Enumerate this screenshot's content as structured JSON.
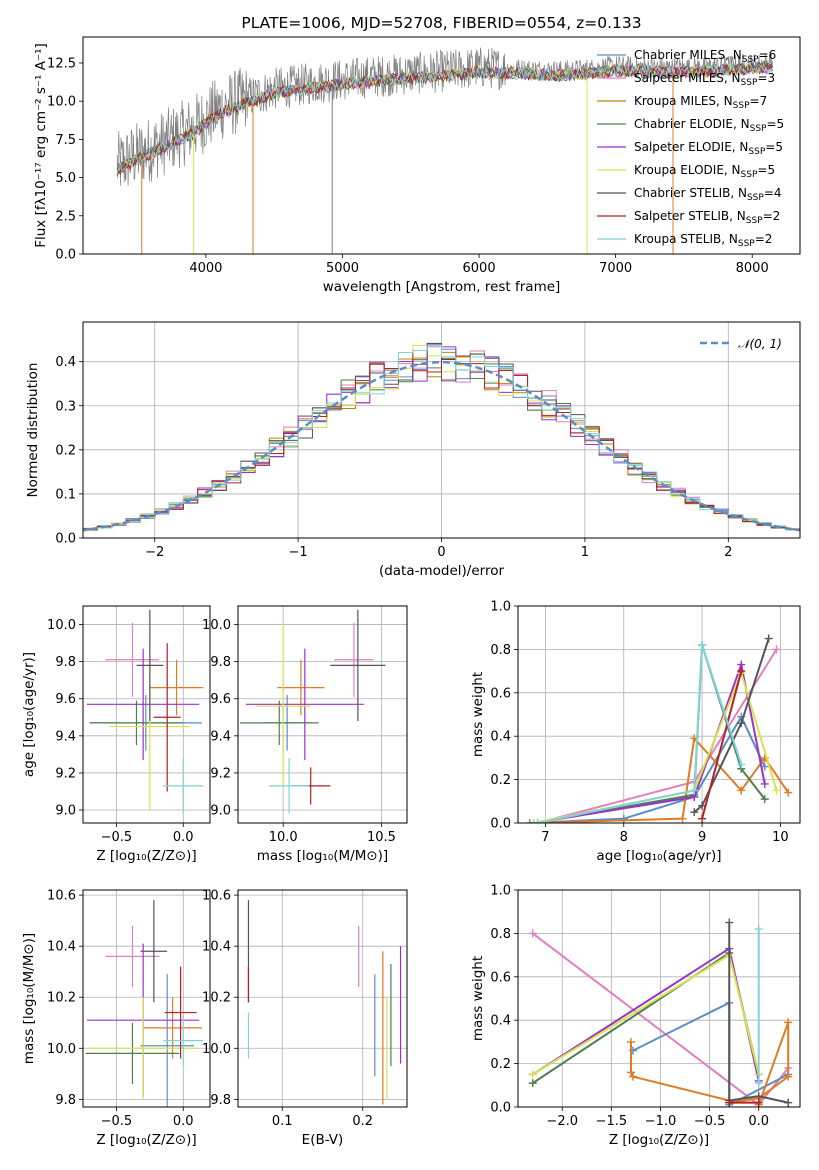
{
  "chart_data": [
    {
      "id": "spectrum",
      "type": "line",
      "title": "PLATE=1006, MJD=52708, FIBERID=0554, z=0.133",
      "xlabel": "wavelength [Angstrom, rest frame]",
      "ylabel": "Flux [fλ10⁻¹⁷ erg cm⁻² s⁻¹ A⁻¹]",
      "xlim": [
        3100,
        8350
      ],
      "ylim": [
        0,
        14.2
      ],
      "xticks": [
        "4000",
        "5000",
        "6000",
        "7000",
        "8000"
      ],
      "yticks": [
        "0.0",
        "2.5",
        "5.0",
        "7.5",
        "10.0",
        "12.5"
      ],
      "grid": false,
      "legend_position": "right",
      "data_envelope": {
        "x": [
          3350,
          3500,
          3700,
          3900,
          4100,
          4300,
          4500,
          4800,
          5000,
          5200,
          5500,
          5800,
          6000,
          6300,
          6600,
          6800,
          7000,
          7300,
          7600,
          7900,
          8150
        ],
        "y": [
          5.8,
          6.5,
          7.3,
          8.2,
          9.5,
          10.2,
          10.8,
          11.2,
          11.4,
          11.6,
          11.8,
          12.0,
          12.2,
          12.1,
          12.0,
          12.1,
          12.3,
          12.2,
          12.2,
          12.4,
          12.5
        ]
      },
      "series": [
        {
          "name": "Chabrier MILES, N",
          "sub": "SSP",
          "tail": "=6",
          "color": "#5a8dc8"
        },
        {
          "name": "Salpeter MILES, N",
          "sub": "SSP",
          "tail": "=3",
          "color": "#e17fc0"
        },
        {
          "name": "Kroupa MILES, N",
          "sub": "SSP",
          "tail": "=7",
          "color": "#b8860b"
        },
        {
          "name": "Chabrier ELODIE, N",
          "sub": "SSP",
          "tail": "=5",
          "color": "#4f7f4f"
        },
        {
          "name": "Salpeter ELODIE, N",
          "sub": "SSP",
          "tail": "=5",
          "color": "#9932cc"
        },
        {
          "name": "Kroupa ELODIE, N",
          "sub": "SSP",
          "tail": "=5",
          "color": "#d8e34a"
        },
        {
          "name": "Chabrier STELIB, N",
          "sub": "SSP",
          "tail": "=4",
          "color": "#555555"
        },
        {
          "name": "Salpeter STELIB, N",
          "sub": "SSP",
          "tail": "=2",
          "color": "#b22222"
        },
        {
          "name": "Kroupa STELIB, N",
          "sub": "SSP",
          "tail": "=2",
          "color": "#7fd4d8"
        }
      ]
    },
    {
      "id": "residuals",
      "type": "line",
      "xlabel": "(data-model)/error",
      "ylabel": "Normed distribution",
      "xlim": [
        -2.5,
        2.5
      ],
      "ylim": [
        0,
        0.49
      ],
      "xticks": [
        "−2",
        "−1",
        "0",
        "1",
        "2"
      ],
      "yticks": [
        "0.0",
        "0.1",
        "0.2",
        "0.3",
        "0.4"
      ],
      "grid": true,
      "legend_position": "top-right",
      "legend": "𝒩(0, 1)",
      "gaussian": {
        "mean": 0,
        "sigma": 1,
        "color": "#5a8dc8"
      }
    },
    {
      "id": "age_vs_Z",
      "type": "scatter",
      "xlabel": "Z [log₁₀(Z/Z⊙)]",
      "ylabel": "age  [log₁₀(age/yr)]",
      "xlim": [
        -0.75,
        0.2
      ],
      "ylim": [
        8.93,
        10.1
      ],
      "xticks": [
        "−0.5",
        "0.0"
      ],
      "yticks": [
        "9.0",
        "9.2",
        "9.4",
        "9.6",
        "9.8",
        "10.0"
      ],
      "grid": true,
      "points": [
        {
          "x": -0.28,
          "y": 9.47,
          "xerr": 0.42,
          "yerr": 0.15,
          "color": "#5a8dc8"
        },
        {
          "x": -0.38,
          "y": 9.81,
          "xerr": 0.2,
          "yerr": 0.2,
          "color": "#e17fc0"
        },
        {
          "x": -0.05,
          "y": 9.66,
          "xerr": 0.2,
          "yerr": 0.15,
          "color": "#e07b26"
        },
        {
          "x": -0.35,
          "y": 9.47,
          "xerr": 0.35,
          "yerr": 0.12,
          "color": "#4f7f4f"
        },
        {
          "x": -0.3,
          "y": 9.57,
          "xerr": 0.42,
          "yerr": 0.3,
          "color": "#9932cc"
        },
        {
          "x": -0.25,
          "y": 9.45,
          "xerr": 0.3,
          "yerr": 0.45,
          "color": "#d8e34a"
        },
        {
          "x": -0.25,
          "y": 9.78,
          "xerr": 0.1,
          "yerr": 0.3,
          "color": "#555555"
        },
        {
          "x": -0.12,
          "y": 9.5,
          "xerr": 0.1,
          "yerr": 0.4,
          "color": "#b22222"
        },
        {
          "x": 0.0,
          "y": 9.13,
          "xerr": 0.15,
          "yerr": 0.15,
          "color": "#7fd4d8"
        }
      ]
    },
    {
      "id": "age_vs_mass",
      "type": "scatter",
      "xlabel": "mass [log₁₀(M/M⊙)]",
      "ylabel": "",
      "xlim": [
        9.77,
        10.63
      ],
      "ylim": [
        8.93,
        10.1
      ],
      "xticks": [
        "10.0",
        "10.5"
      ],
      "yticks": [
        "9.0",
        "9.2",
        "9.4",
        "9.6",
        "9.8",
        "10.0"
      ],
      "grid": true,
      "points": [
        {
          "x": 10.02,
          "y": 9.47,
          "xerr": 0.12,
          "yerr": 0.15,
          "color": "#5a8dc8"
        },
        {
          "x": 10.36,
          "y": 9.81,
          "xerr": 0.1,
          "yerr": 0.2,
          "color": "#e17fc0"
        },
        {
          "x": 10.09,
          "y": 9.66,
          "xerr": 0.12,
          "yerr": 0.15,
          "color": "#e07b26"
        },
        {
          "x": 9.98,
          "y": 9.47,
          "xerr": 0.2,
          "yerr": 0.12,
          "color": "#4f7f4f"
        },
        {
          "x": 10.11,
          "y": 9.57,
          "xerr": 0.3,
          "yerr": 0.3,
          "color": "#9932cc"
        },
        {
          "x": 10.0,
          "y": 9.56,
          "xerr": 0.14,
          "yerr": 0.45,
          "color": "#d8e34a"
        },
        {
          "x": 10.38,
          "y": 9.78,
          "xerr": 0.14,
          "yerr": 0.3,
          "color": "#555555"
        },
        {
          "x": 10.14,
          "y": 9.13,
          "xerr": 0.1,
          "yerr": 0.1,
          "color": "#b22222"
        },
        {
          "x": 10.03,
          "y": 9.13,
          "xerr": 0.1,
          "yerr": 0.15,
          "color": "#7fd4d8"
        }
      ]
    },
    {
      "id": "weight_vs_age",
      "type": "line",
      "xlabel": "age  [log₁₀(age/yr)]",
      "ylabel": "mass weight",
      "xlim": [
        6.65,
        10.25
      ],
      "ylim": [
        0,
        1.0
      ],
      "xticks": [
        "7",
        "8",
        "9",
        "10"
      ],
      "yticks": [
        "0.0",
        "0.2",
        "0.4",
        "0.6",
        "0.8",
        "1.0"
      ],
      "grid": true,
      "series": [
        {
          "color": "#5a8dc8",
          "x": [
            6.8,
            8.0,
            8.9,
            9.5,
            9.8
          ],
          "y": [
            0.0,
            0.02,
            0.12,
            0.49,
            0.26
          ]
        },
        {
          "color": "#e17fc0",
          "x": [
            6.9,
            8.9,
            9.95
          ],
          "y": [
            0.0,
            0.19,
            0.8
          ]
        },
        {
          "color": "#e07b26",
          "x": [
            6.85,
            8.75,
            8.9,
            9.5,
            9.8,
            10.1
          ],
          "y": [
            0.0,
            0.02,
            0.39,
            0.15,
            0.3,
            0.14
          ]
        },
        {
          "color": "#4f7f4f",
          "x": [
            6.85,
            8.9,
            9.0,
            9.5,
            9.8
          ],
          "y": [
            0.0,
            0.13,
            0.82,
            0.25,
            0.11
          ]
        },
        {
          "color": "#9932cc",
          "x": [
            6.85,
            8.9,
            9.5,
            9.8
          ],
          "y": [
            0.0,
            0.12,
            0.73,
            0.18
          ]
        },
        {
          "color": "#d8e34a",
          "x": [
            6.85,
            8.9,
            9.5,
            9.95
          ],
          "y": [
            0.0,
            0.15,
            0.69,
            0.15
          ]
        },
        {
          "color": "#555555",
          "x": [
            8.9,
            9.0,
            9.5,
            9.85
          ],
          "y": [
            0.05,
            0.08,
            0.46,
            0.85
          ]
        },
        {
          "color": "#b22222",
          "x": [
            9.0,
            9.5
          ],
          "y": [
            0.02,
            0.7
          ]
        },
        {
          "color": "#7fd4d8",
          "x": [
            6.9,
            8.9,
            9.0,
            9.5
          ],
          "y": [
            0.0,
            0.15,
            0.82,
            0.27
          ]
        }
      ]
    },
    {
      "id": "mass_vs_Z",
      "type": "scatter",
      "xlabel": "Z [log₁₀(Z/Z⊙)]",
      "ylabel": "mass [log₁₀(M/M⊙)]",
      "xlim": [
        -0.75,
        0.2
      ],
      "ylim": [
        9.77,
        10.62
      ],
      "xticks": [
        "−0.5",
        "0.0"
      ],
      "yticks": [
        "9.8",
        "10.0",
        "10.2",
        "10.4",
        "10.6"
      ],
      "grid": true,
      "points": [
        {
          "x": -0.12,
          "y": 10.01,
          "xerr": 0.2,
          "yerr": 0.28,
          "color": "#5a8dc8"
        },
        {
          "x": -0.38,
          "y": 10.36,
          "xerr": 0.2,
          "yerr": 0.12,
          "color": "#e17fc0"
        },
        {
          "x": -0.08,
          "y": 10.08,
          "xerr": 0.22,
          "yerr": 0.12,
          "color": "#e07b26"
        },
        {
          "x": -0.38,
          "y": 9.98,
          "xerr": 0.35,
          "yerr": 0.12,
          "color": "#4f7f4f"
        },
        {
          "x": -0.3,
          "y": 10.11,
          "xerr": 0.42,
          "yerr": 0.3,
          "color": "#9932cc"
        },
        {
          "x": -0.3,
          "y": 10.0,
          "xerr": 0.4,
          "yerr": 0.2,
          "color": "#d8e34a"
        },
        {
          "x": -0.22,
          "y": 10.38,
          "xerr": 0.1,
          "yerr": 0.2,
          "color": "#555555"
        },
        {
          "x": -0.02,
          "y": 10.14,
          "xerr": 0.12,
          "yerr": 0.18,
          "color": "#b22222"
        },
        {
          "x": 0.0,
          "y": 10.03,
          "xerr": 0.15,
          "yerr": 0.1,
          "color": "#7fd4d8"
        }
      ]
    },
    {
      "id": "mass_vs_ebv",
      "type": "scatter",
      "xlabel": "E(B-V)",
      "ylabel": "",
      "xlim": [
        0.045,
        0.255
      ],
      "ylim": [
        9.77,
        10.62
      ],
      "xticks": [
        "0.1",
        "0.2"
      ],
      "yticks": [
        "9.8",
        "10.0",
        "10.2",
        "10.4",
        "10.6"
      ],
      "grid": true,
      "points": [
        {
          "x": 0.215,
          "y": 10.09,
          "yerr": 0.2,
          "color": "#5a8dc8"
        },
        {
          "x": 0.195,
          "y": 10.36,
          "yerr": 0.12,
          "color": "#e17fc0"
        },
        {
          "x": 0.225,
          "y": 10.08,
          "yerr": 0.3,
          "color": "#e07b26"
        },
        {
          "x": 0.235,
          "y": 10.13,
          "yerr": 0.2,
          "color": "#4f7f4f"
        },
        {
          "x": 0.247,
          "y": 10.17,
          "yerr": 0.23,
          "color": "#9932cc"
        },
        {
          "x": 0.23,
          "y": 10.0,
          "yerr": 0.2,
          "color": "#d8e34a"
        },
        {
          "x": 0.058,
          "y": 10.38,
          "yerr": 0.2,
          "color": "#555555"
        },
        {
          "x": 0.058,
          "y": 10.25,
          "yerr": 0.07,
          "color": "#b22222"
        },
        {
          "x": 0.058,
          "y": 10.05,
          "yerr": 0.09,
          "color": "#7fd4d8"
        }
      ]
    },
    {
      "id": "weight_vs_Z",
      "type": "line",
      "xlabel": "Z [log₁₀(Z/Z⊙)]",
      "ylabel": "mass weight",
      "xlim": [
        -2.45,
        0.42
      ],
      "ylim": [
        0,
        1.0
      ],
      "xticks": [
        "−2.0",
        "−1.5",
        "−1.0",
        "−0.5",
        "0.0"
      ],
      "yticks": [
        "0.0",
        "0.2",
        "0.4",
        "0.6",
        "0.8",
        "1.0"
      ],
      "grid": true,
      "series": [
        {
          "color": "#e17fc0",
          "x": [
            -2.3,
            0.0,
            0.3
          ],
          "y": [
            0.8,
            0.01,
            0.18
          ]
        },
        {
          "color": "#5a8dc8",
          "x": [
            -1.28,
            -0.3,
            -0.3,
            0.3
          ],
          "y": [
            0.26,
            0.48,
            0.01,
            0.15
          ]
        },
        {
          "color": "#e07b26",
          "x": [
            -1.3,
            -1.3,
            -1.28,
            -0.3,
            -0.3,
            0.0,
            0.3,
            0.3,
            0.0
          ],
          "y": [
            0.3,
            0.16,
            0.14,
            0.03,
            0.02,
            0.04,
            0.14,
            0.39,
            0.01
          ]
        },
        {
          "color": "#4f7f4f",
          "x": [
            -2.3,
            -0.3,
            0.0
          ],
          "y": [
            0.11,
            0.71,
            0.15
          ]
        },
        {
          "color": "#9932cc",
          "x": [
            -2.3,
            -0.3,
            0.0
          ],
          "y": [
            0.15,
            0.73,
            0.12
          ]
        },
        {
          "color": "#d8e34a",
          "x": [
            -2.3,
            -0.3,
            0.0
          ],
          "y": [
            0.15,
            0.7,
            0.15
          ]
        },
        {
          "color": "#555555",
          "x": [
            -0.3,
            -0.3,
            0.0,
            0.3
          ],
          "y": [
            0.85,
            0.03,
            0.05,
            0.02
          ]
        },
        {
          "color": "#b22222",
          "x": [
            -0.3,
            0.0
          ],
          "y": [
            0.02,
            0.02
          ]
        },
        {
          "color": "#7fd4d8",
          "x": [
            0.0,
            0.0
          ],
          "y": [
            0.82,
            0.11
          ]
        }
      ]
    }
  ]
}
